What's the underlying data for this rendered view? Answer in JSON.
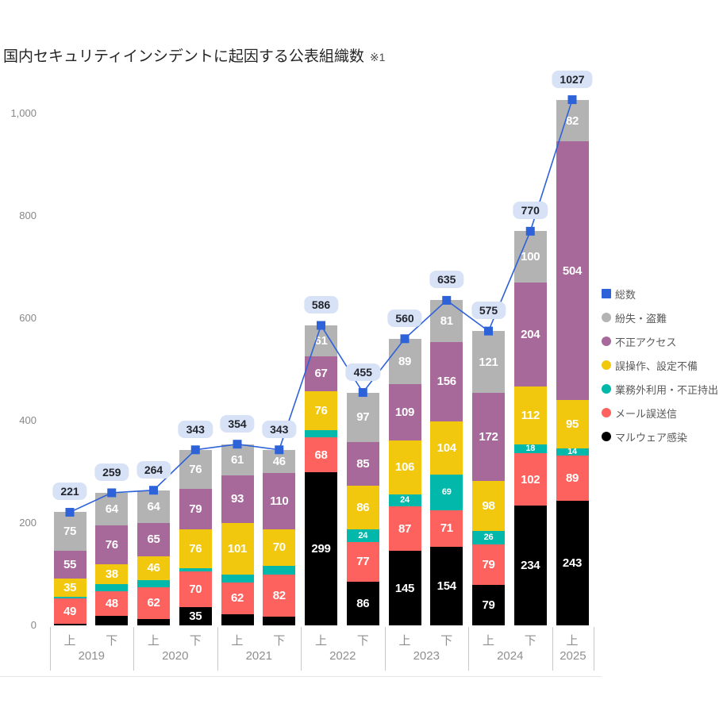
{
  "title": {
    "text": "国内セキュリティインシデントに起因する公表組織数",
    "note": "※1"
  },
  "colors": {
    "total_line": "#2E62D9",
    "loss_theft": "#B3B3B3",
    "unauthorized_access": "#A66999",
    "misconfiguration": "#F2C80F",
    "misuse_takeout": "#01B8AA",
    "email_missend": "#FD625E",
    "malware": "#000000",
    "pill_bg": "#D8E2F7",
    "pill_text": "#22252B"
  },
  "legend": {
    "items": [
      {
        "label": "総数",
        "color": "#2E62D9",
        "shape": "square"
      },
      {
        "label": "紛失・盗難",
        "color": "#B3B3B3",
        "shape": "circle"
      },
      {
        "label": "不正アクセス",
        "color": "#A66999",
        "shape": "circle"
      },
      {
        "label": "誤操作、設定不備",
        "color": "#F2C80F",
        "shape": "circle"
      },
      {
        "label": "業務外利用・不正持出",
        "color": "#01B8AA",
        "shape": "circle"
      },
      {
        "label": "メール誤送信",
        "color": "#FD625E",
        "shape": "circle"
      },
      {
        "label": "マルウェア感染",
        "color": "#000000",
        "shape": "circle"
      }
    ]
  },
  "chart_data": {
    "type": "bar",
    "subtype": "stacked-columns-with-total-line",
    "title": "国内セキュリティインシデントに起因する公表組織数 ※1",
    "categories": [
      "2019上",
      "2019下",
      "2020上",
      "2020下",
      "2021上",
      "2021下",
      "2022上",
      "2022下",
      "2023上",
      "2023下",
      "2024上",
      "2024下",
      "2025上"
    ],
    "x_groups": [
      {
        "year": "2019",
        "halves": [
          "上",
          "下"
        ]
      },
      {
        "year": "2020",
        "halves": [
          "上",
          "下"
        ]
      },
      {
        "year": "2021",
        "halves": [
          "上",
          "下"
        ]
      },
      {
        "year": "2022",
        "halves": [
          "上",
          "下"
        ]
      },
      {
        "year": "2023",
        "halves": [
          "上",
          "下"
        ]
      },
      {
        "year": "2024",
        "halves": [
          "上",
          "下"
        ]
      },
      {
        "year": "2025",
        "halves": [
          "上"
        ]
      }
    ],
    "series": [
      {
        "name": "マルウェア感染",
        "color": "#000000",
        "values": [
          3,
          18,
          13,
          35,
          22,
          17,
          299,
          86,
          145,
          154,
          79,
          234,
          243
        ],
        "labels": [
          "",
          "",
          "",
          "35",
          "",
          "",
          "299",
          "86",
          "145",
          "154",
          "79",
          "234",
          "243"
        ]
      },
      {
        "name": "メール誤送信",
        "color": "#FD625E",
        "values": [
          49,
          48,
          62,
          70,
          62,
          82,
          68,
          77,
          87,
          71,
          79,
          102,
          89
        ],
        "labels": [
          "49",
          "48",
          "62",
          "70",
          "62",
          "82",
          "68",
          "77",
          "87",
          "71",
          "79",
          "102",
          "89"
        ]
      },
      {
        "name": "業務外利用・不正持出",
        "color": "#01B8AA",
        "values": [
          4,
          15,
          14,
          7,
          15,
          18,
          15,
          24,
          24,
          69,
          26,
          18,
          14
        ],
        "labels": [
          "",
          "",
          "",
          "",
          "",
          "",
          "",
          "24",
          "24",
          "69",
          "26",
          "18",
          "14"
        ],
        "label_size": "small"
      },
      {
        "name": "誤操作、設定不備",
        "color": "#F2C80F",
        "values": [
          35,
          38,
          46,
          76,
          101,
          70,
          76,
          86,
          106,
          104,
          98,
          112,
          95
        ],
        "labels": [
          "35",
          "38",
          "46",
          "76",
          "101",
          "70",
          "76",
          "86",
          "106",
          "104",
          "98",
          "112",
          "95"
        ]
      },
      {
        "name": "不正アクセス",
        "color": "#A66999",
        "values": [
          55,
          76,
          65,
          79,
          93,
          110,
          67,
          85,
          109,
          156,
          172,
          204,
          504
        ],
        "labels": [
          "55",
          "76",
          "65",
          "79",
          "93",
          "110",
          "67",
          "85",
          "109",
          "156",
          "172",
          "204",
          "504"
        ]
      },
      {
        "name": "紛失・盗難",
        "color": "#B3B3B3",
        "values": [
          75,
          64,
          64,
          76,
          61,
          46,
          61,
          97,
          89,
          81,
          121,
          100,
          82
        ],
        "labels": [
          "75",
          "64",
          "64",
          "76",
          "61",
          "46",
          "61",
          "97",
          "89",
          "81",
          "121",
          "100",
          "82"
        ]
      }
    ],
    "line_series": {
      "name": "総数",
      "color": "#2E62D9",
      "values": [
        221,
        259,
        264,
        343,
        354,
        343,
        586,
        455,
        560,
        635,
        575,
        770,
        1027
      ]
    },
    "y_tick_values": [
      0,
      200,
      400,
      600,
      800,
      1000
    ],
    "y_tick_labels": [
      "0",
      "200",
      "400",
      "600",
      "800",
      "1,000"
    ],
    "ylim": [
      0,
      1080
    ],
    "grid": false,
    "legend_position": "right"
  }
}
